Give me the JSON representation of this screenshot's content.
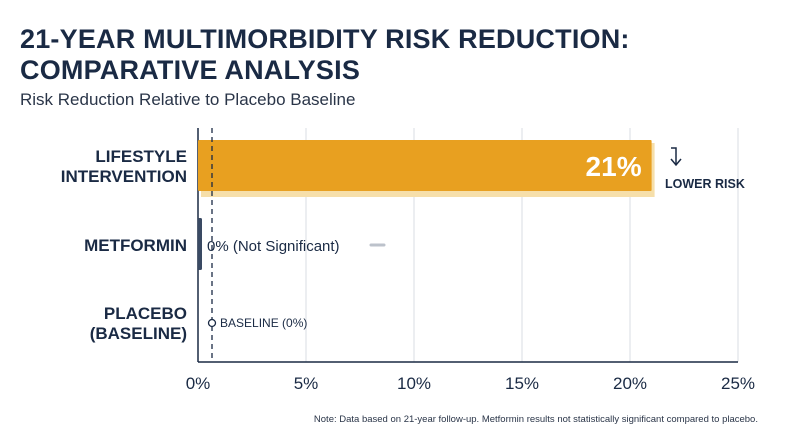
{
  "chart_data": {
    "type": "bar",
    "orientation": "horizontal",
    "title_line1": "21-YEAR MULTIMORBIDITY RISK REDUCTION:",
    "title_line2": "COMPARATIVE ANALYSIS",
    "subtitle": "Risk Reduction Relative to Placebo Baseline",
    "categories": [
      {
        "line1": "LIFESTYLE",
        "line2": "INTERVENTION"
      },
      {
        "line1": "METFORMIN",
        "line2": ""
      },
      {
        "line1": "PLACEBO",
        "line2": "(BASELINE)"
      }
    ],
    "values": [
      21,
      0,
      0
    ],
    "value_labels": [
      "21%",
      "0% (Not Significant)",
      "BASELINE (0%)"
    ],
    "xlim": [
      0,
      25
    ],
    "xticks": [
      "0%",
      "5%",
      "10%",
      "15%",
      "20%",
      "25%"
    ],
    "annotation": "LOWER RISK",
    "bar_color": "#e8a020",
    "grid": true
  },
  "note": "Note: Data based on 21-year follow-up. Metformin results not statistically significant compared to placebo."
}
